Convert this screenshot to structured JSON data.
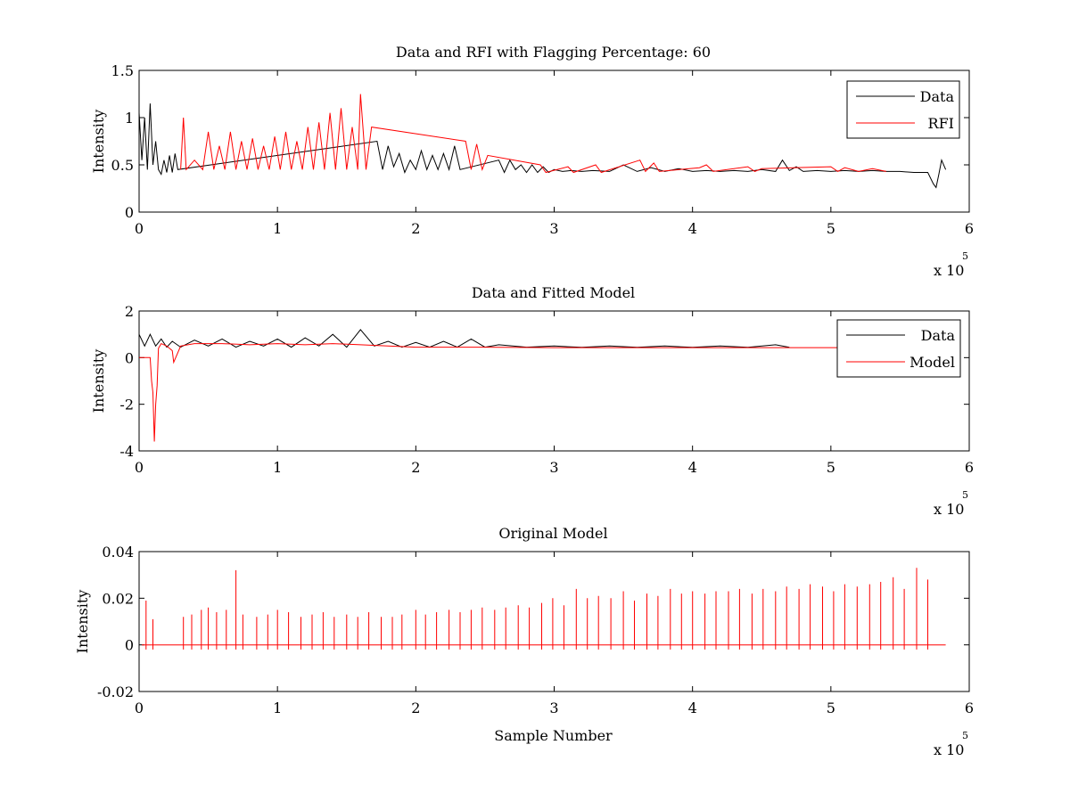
{
  "chart_data": [
    {
      "type": "line",
      "title": "Data and RFI with Flagging Percentage: 60",
      "xlabel": "",
      "ylabel": "Intensity",
      "xlim": [
        0,
        6
      ],
      "ylim": [
        0,
        1.5
      ],
      "x_scale_note": "x 10",
      "x_scale_exponent": "5",
      "xticks": [
        "0",
        "1",
        "2",
        "3",
        "4",
        "5",
        "6"
      ],
      "yticks": [
        "0",
        "0.5",
        "1",
        "1.5"
      ],
      "legend_position": "top-right",
      "series": [
        {
          "name": "Data",
          "color": "#000000",
          "x": [
            0,
            0.02,
            0.04,
            0.06,
            0.08,
            0.1,
            0.12,
            0.14,
            0.16,
            0.18,
            0.2,
            0.22,
            0.24,
            0.26,
            0.28,
            1.72,
            1.76,
            1.8,
            1.84,
            1.88,
            1.92,
            1.96,
            2.0,
            2.04,
            2.08,
            2.12,
            2.16,
            2.2,
            2.24,
            2.28,
            2.32,
            2.6,
            2.64,
            2.68,
            2.72,
            2.76,
            2.8,
            2.84,
            2.88,
            2.92,
            2.96,
            3.0,
            3.06,
            3.12,
            3.2,
            3.28,
            3.4,
            3.5,
            3.6,
            3.7,
            3.8,
            3.9,
            4.0,
            4.1,
            4.2,
            4.3,
            4.4,
            4.5,
            4.6,
            4.65,
            4.7,
            4.75,
            4.8,
            4.9,
            5.0,
            5.1,
            5.2,
            5.3,
            5.4,
            5.5,
            5.6,
            5.7,
            5.74,
            5.76,
            5.78,
            5.8,
            5.83
          ],
          "y": [
            1.05,
            0.55,
            1.0,
            0.45,
            1.15,
            0.5,
            0.75,
            0.45,
            0.4,
            0.55,
            0.42,
            0.6,
            0.42,
            0.62,
            0.45,
            0.75,
            0.45,
            0.7,
            0.48,
            0.62,
            0.42,
            0.55,
            0.45,
            0.65,
            0.45,
            0.6,
            0.45,
            0.62,
            0.45,
            0.7,
            0.45,
            0.55,
            0.42,
            0.55,
            0.45,
            0.5,
            0.42,
            0.5,
            0.42,
            0.48,
            0.42,
            0.45,
            0.43,
            0.44,
            0.43,
            0.44,
            0.43,
            0.5,
            0.43,
            0.47,
            0.43,
            0.46,
            0.43,
            0.44,
            0.43,
            0.44,
            0.43,
            0.45,
            0.43,
            0.55,
            0.44,
            0.48,
            0.43,
            0.44,
            0.43,
            0.44,
            0.43,
            0.44,
            0.43,
            0.43,
            0.42,
            0.42,
            0.3,
            0.26,
            0.4,
            0.55,
            0.45
          ]
        },
        {
          "name": "RFI",
          "color": "#ff0000",
          "x": [
            0.3,
            0.32,
            0.34,
            0.4,
            0.46,
            0.5,
            0.54,
            0.58,
            0.62,
            0.66,
            0.7,
            0.74,
            0.78,
            0.82,
            0.86,
            0.9,
            0.94,
            0.98,
            1.02,
            1.06,
            1.1,
            1.14,
            1.18,
            1.22,
            1.26,
            1.3,
            1.34,
            1.38,
            1.42,
            1.46,
            1.5,
            1.54,
            1.58,
            1.6,
            1.64,
            1.68,
            2.36,
            2.4,
            2.44,
            2.48,
            2.52,
            2.9,
            2.94,
            3.1,
            3.14,
            3.3,
            3.34,
            3.62,
            3.66,
            3.72,
            3.76,
            4.05,
            4.1,
            4.15,
            4.4,
            4.45,
            4.5,
            5.0,
            5.05,
            5.1,
            5.2,
            5.3,
            5.4
          ],
          "y": [
            0.45,
            1.0,
            0.45,
            0.55,
            0.45,
            0.85,
            0.45,
            0.7,
            0.45,
            0.85,
            0.45,
            0.75,
            0.45,
            0.78,
            0.45,
            0.7,
            0.45,
            0.8,
            0.45,
            0.85,
            0.45,
            0.75,
            0.45,
            0.9,
            0.45,
            0.95,
            0.45,
            1.05,
            0.45,
            1.1,
            0.45,
            0.9,
            0.45,
            1.25,
            0.45,
            0.9,
            0.75,
            0.45,
            0.72,
            0.45,
            0.6,
            0.5,
            0.42,
            0.48,
            0.42,
            0.5,
            0.42,
            0.55,
            0.43,
            0.52,
            0.43,
            0.47,
            0.5,
            0.43,
            0.48,
            0.43,
            0.46,
            0.48,
            0.43,
            0.47,
            0.43,
            0.46,
            0.43
          ]
        }
      ]
    },
    {
      "type": "line",
      "title": "Data and Fitted Model",
      "xlabel": "",
      "ylabel": "Intensity",
      "xlim": [
        0,
        6
      ],
      "ylim": [
        -4,
        2
      ],
      "x_scale_note": "x 10",
      "x_scale_exponent": "5",
      "xticks": [
        "0",
        "1",
        "2",
        "3",
        "4",
        "5",
        "6"
      ],
      "yticks": [
        "-4",
        "-2",
        "0",
        "2"
      ],
      "legend_position": "top-right",
      "series": [
        {
          "name": "Data",
          "color": "#000000",
          "x": [
            0,
            0.04,
            0.08,
            0.12,
            0.16,
            0.2,
            0.24,
            0.3,
            0.4,
            0.5,
            0.6,
            0.7,
            0.8,
            0.9,
            1.0,
            1.1,
            1.2,
            1.3,
            1.4,
            1.5,
            1.6,
            1.7,
            1.8,
            1.9,
            2.0,
            2.1,
            2.2,
            2.3,
            2.4,
            2.5,
            2.6,
            2.8,
            3.0,
            3.2,
            3.4,
            3.6,
            3.8,
            4.0,
            4.2,
            4.4,
            4.6,
            4.7
          ],
          "y": [
            1.0,
            0.5,
            1.0,
            0.5,
            0.8,
            0.45,
            0.7,
            0.45,
            0.75,
            0.5,
            0.8,
            0.45,
            0.7,
            0.5,
            0.8,
            0.45,
            0.85,
            0.5,
            1.0,
            0.45,
            1.2,
            0.5,
            0.7,
            0.45,
            0.65,
            0.45,
            0.7,
            0.45,
            0.8,
            0.45,
            0.55,
            0.45,
            0.5,
            0.44,
            0.5,
            0.44,
            0.5,
            0.44,
            0.5,
            0.44,
            0.55,
            0.44
          ]
        },
        {
          "name": "Model",
          "color": "#ff0000",
          "x": [
            0,
            0.08,
            0.09,
            0.1,
            0.11,
            0.12,
            0.13,
            0.14,
            0.16,
            0.2,
            0.24,
            0.25,
            0.3,
            0.4,
            0.6,
            0.8,
            1.0,
            1.2,
            1.4,
            1.6,
            1.8,
            2.0,
            2.5,
            3.0,
            3.5,
            4.0,
            4.5,
            5.0,
            5.83
          ],
          "y": [
            0.0,
            0.0,
            -1.0,
            -1.5,
            -3.6,
            -2.0,
            -1.2,
            0.4,
            0.6,
            0.5,
            0.3,
            -0.2,
            0.5,
            0.6,
            0.6,
            0.55,
            0.6,
            0.55,
            0.6,
            0.55,
            0.5,
            0.45,
            0.45,
            0.43,
            0.43,
            0.43,
            0.43,
            0.43,
            0.43
          ]
        }
      ]
    },
    {
      "type": "line",
      "title": "Original Model",
      "xlabel": "Sample Number",
      "ylabel": "Intensity",
      "xlim": [
        0,
        6
      ],
      "ylim": [
        -0.02,
        0.04
      ],
      "x_scale_note": "x 10",
      "x_scale_exponent": "5",
      "xticks": [
        "0",
        "1",
        "2",
        "3",
        "4",
        "5",
        "6"
      ],
      "yticks": [
        "-0.02",
        "0",
        "0.02",
        "0.04"
      ],
      "series": [
        {
          "name": "Original Model",
          "color": "#ff0000",
          "x": [
            0.05,
            0.1,
            0.32,
            0.38,
            0.45,
            0.5,
            0.56,
            0.63,
            0.7,
            0.75,
            0.85,
            0.93,
            1.0,
            1.08,
            1.17,
            1.25,
            1.33,
            1.41,
            1.5,
            1.58,
            1.66,
            1.75,
            1.83,
            1.9,
            2.0,
            2.07,
            2.15,
            2.24,
            2.32,
            2.4,
            2.48,
            2.57,
            2.65,
            2.74,
            2.82,
            2.91,
            2.99,
            3.07,
            3.16,
            3.24,
            3.32,
            3.41,
            3.5,
            3.58,
            3.67,
            3.75,
            3.84,
            3.92,
            4.0,
            4.09,
            4.17,
            4.26,
            4.34,
            4.43,
            4.51,
            4.6,
            4.68,
            4.77,
            4.85,
            4.94,
            5.02,
            5.1,
            5.19,
            5.28,
            5.36,
            5.45,
            5.53,
            5.62,
            5.7
          ],
          "y": [
            0.019,
            0.011,
            0.012,
            0.013,
            0.015,
            0.016,
            0.014,
            0.015,
            0.032,
            0.013,
            0.012,
            0.013,
            0.015,
            0.014,
            0.012,
            0.013,
            0.014,
            0.012,
            0.013,
            0.012,
            0.014,
            0.012,
            0.012,
            0.013,
            0.015,
            0.013,
            0.014,
            0.015,
            0.014,
            0.015,
            0.016,
            0.015,
            0.016,
            0.017,
            0.016,
            0.018,
            0.02,
            0.017,
            0.024,
            0.02,
            0.021,
            0.02,
            0.023,
            0.019,
            0.022,
            0.021,
            0.024,
            0.022,
            0.023,
            0.022,
            0.023,
            0.023,
            0.024,
            0.022,
            0.024,
            0.023,
            0.025,
            0.024,
            0.026,
            0.025,
            0.023,
            0.026,
            0.025,
            0.026,
            0.027,
            0.029,
            0.024,
            0.033,
            0.028
          ]
        }
      ]
    }
  ]
}
